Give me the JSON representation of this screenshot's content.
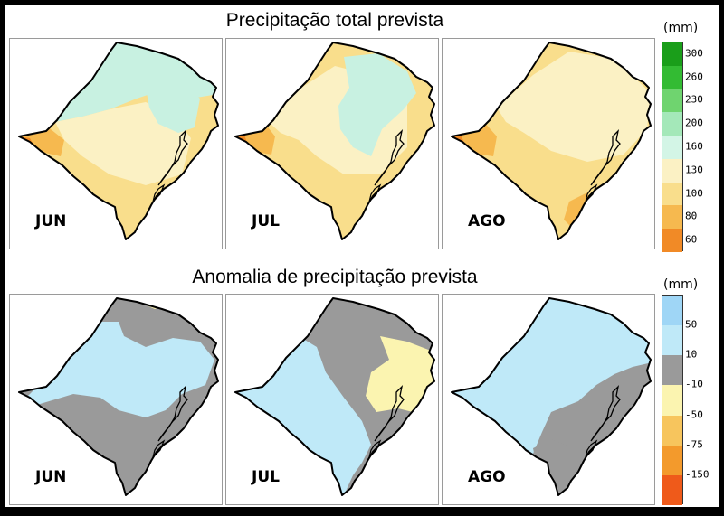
{
  "sections": [
    {
      "title": "Precipitação total prevista",
      "unit": "(mm)",
      "legend": [
        {
          "label": "300",
          "color": "#1a9e1a"
        },
        {
          "label": "260",
          "color": "#33bb33"
        },
        {
          "label": "230",
          "color": "#6fd46f"
        },
        {
          "label": "200",
          "color": "#a4e8b9"
        },
        {
          "label": "160",
          "color": "#d3f5e6"
        },
        {
          "label": "130",
          "color": "#fbf1c4"
        },
        {
          "label": "100",
          "color": "#f9de8c"
        },
        {
          "label": "80",
          "color": "#f6b94f"
        },
        {
          "label": "60",
          "color": "#f18a26"
        }
      ],
      "maps": [
        {
          "month": "JUN",
          "variant": "total-jun"
        },
        {
          "month": "JUL",
          "variant": "total-jul"
        },
        {
          "month": "AGO",
          "variant": "total-ago"
        }
      ]
    },
    {
      "title": "Anomalia de precipitação prevista",
      "unit": "(mm)",
      "legend": [
        {
          "label": "50",
          "color": "#9fd6f6"
        },
        {
          "label": "10",
          "color": "#bfe9f8"
        },
        {
          "label": "-10",
          "color": "#9a9a9a"
        },
        {
          "label": "-50",
          "color": "#fbf4b0"
        },
        {
          "label": "-75",
          "color": "#f7c55d"
        },
        {
          "label": "-150",
          "color": "#f39a2c"
        }
      ],
      "extra_bottom_color": "#ef5a1a",
      "maps": [
        {
          "month": "JUN",
          "variant": "anom-jun"
        },
        {
          "month": "JUL",
          "variant": "anom-jul"
        },
        {
          "month": "AGO",
          "variant": "anom-ago"
        }
      ]
    }
  ],
  "map_colors": {
    "outline": "#000000",
    "total_base": "#f9de8c",
    "total_light": "#fbf1c4",
    "total_cyan": "#c8f1e1",
    "total_orange": "#f6b94f",
    "total_dark_orange": "#f18a26",
    "anom_cyan": "#bfe9f8",
    "anom_gray": "#9a9a9a",
    "anom_yellow": "#fbf4b0"
  }
}
